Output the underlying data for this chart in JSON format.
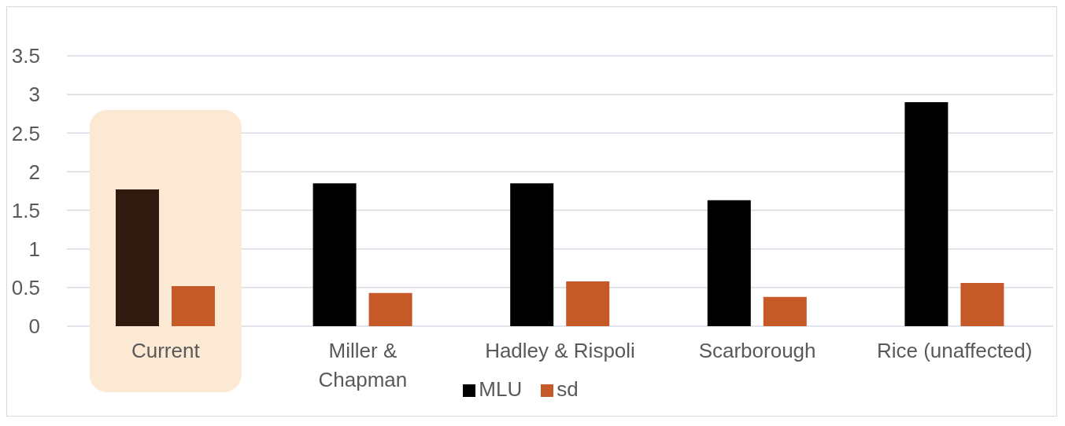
{
  "chart_data": {
    "type": "bar",
    "categories": [
      "Current",
      "Miller & Chapman",
      "Hadley & Rispoli",
      "Scarborough",
      "Rice (unaffected)"
    ],
    "series": [
      {
        "name": "MLU",
        "color": "#000000",
        "colors": [
          "#311b10",
          "#000000",
          "#000000",
          "#000000",
          "#000000"
        ],
        "values": [
          1.77,
          1.85,
          1.85,
          1.63,
          2.9
        ]
      },
      {
        "name": "sd",
        "color": "#c55a28",
        "values": [
          0.52,
          0.43,
          0.58,
          0.38,
          0.56
        ]
      }
    ],
    "ylim": [
      0,
      3.5
    ],
    "yticks": [
      0,
      0.5,
      1,
      1.5,
      2,
      2.5,
      3,
      3.5
    ],
    "grid": "y",
    "legend": "bottom",
    "bands": [
      {
        "axis": "x",
        "from": "Current",
        "to": "Current",
        "color": "#fce9d4"
      }
    ]
  }
}
